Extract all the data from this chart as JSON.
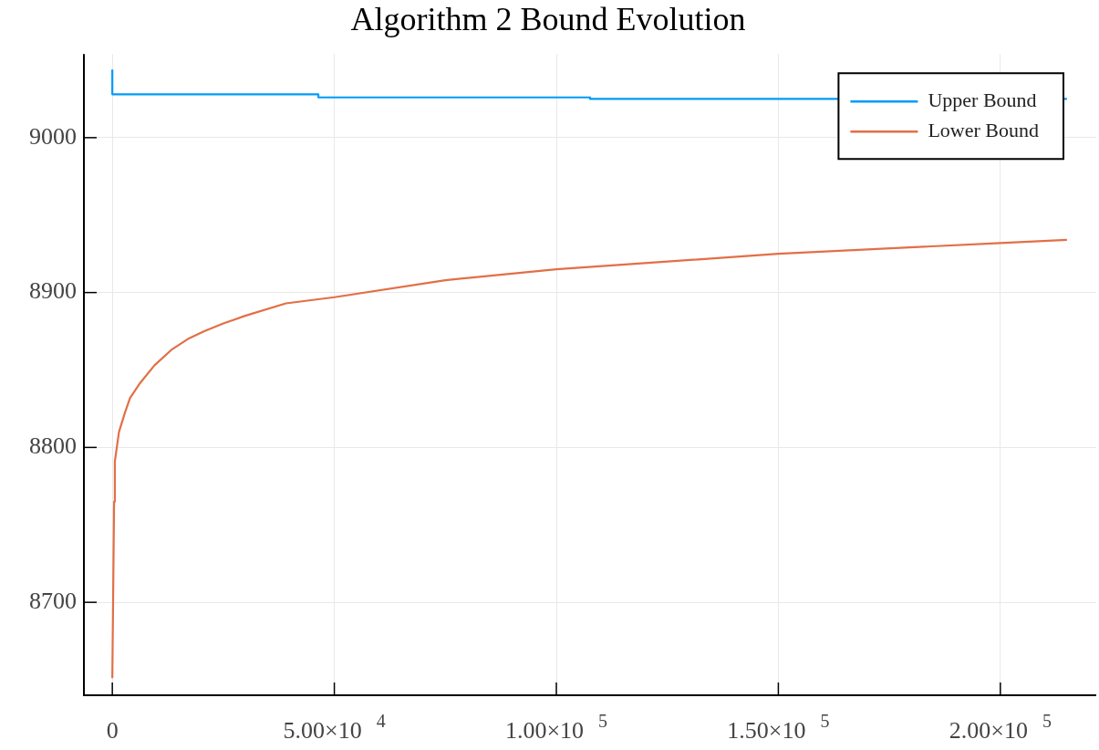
{
  "chart_data": {
    "type": "line",
    "title": "Algorithm 2 Bound Evolution",
    "xlim": [
      -6400,
      221600
    ],
    "ylim": [
      8640,
      9054
    ],
    "xticks": [
      0,
      {
        "value": 50000,
        "label": "5.00×10$^{4}$"
      },
      {
        "value": 100000,
        "label": "1.00×10$^{5}$"
      },
      {
        "value": 150000,
        "label": "1.50×10$^{5}$"
      },
      {
        "value": 200000,
        "label": "2.00×10$^{5}$"
      }
    ],
    "yticks": [
      8700,
      8800,
      8900,
      9000
    ],
    "grid": true,
    "legend": "top right",
    "series": [
      {
        "name": "Upper Bound",
        "type": "step",
        "color": "#009af9",
        "x": [
          0,
          0,
          46400,
          107600,
          215000
        ],
        "values": [
          9044,
          9028,
          9026,
          9025,
          9025
        ]
      },
      {
        "name": "Lower Bound",
        "color": "#e26f46",
        "x": [
          0,
          400,
          570,
          1500,
          2900,
          4000,
          6100,
          9500,
          13300,
          17000,
          20700,
          25000,
          29900,
          39100,
          50000,
          75000,
          100000,
          150000,
          200000,
          215000
        ],
        "values": [
          8651,
          8765,
          8791,
          8810,
          8823,
          8832,
          8841,
          8853,
          8863,
          8870,
          8875,
          8880,
          8885,
          8893,
          8897,
          8908,
          8915,
          8925,
          8932,
          8934
        ]
      }
    ]
  }
}
